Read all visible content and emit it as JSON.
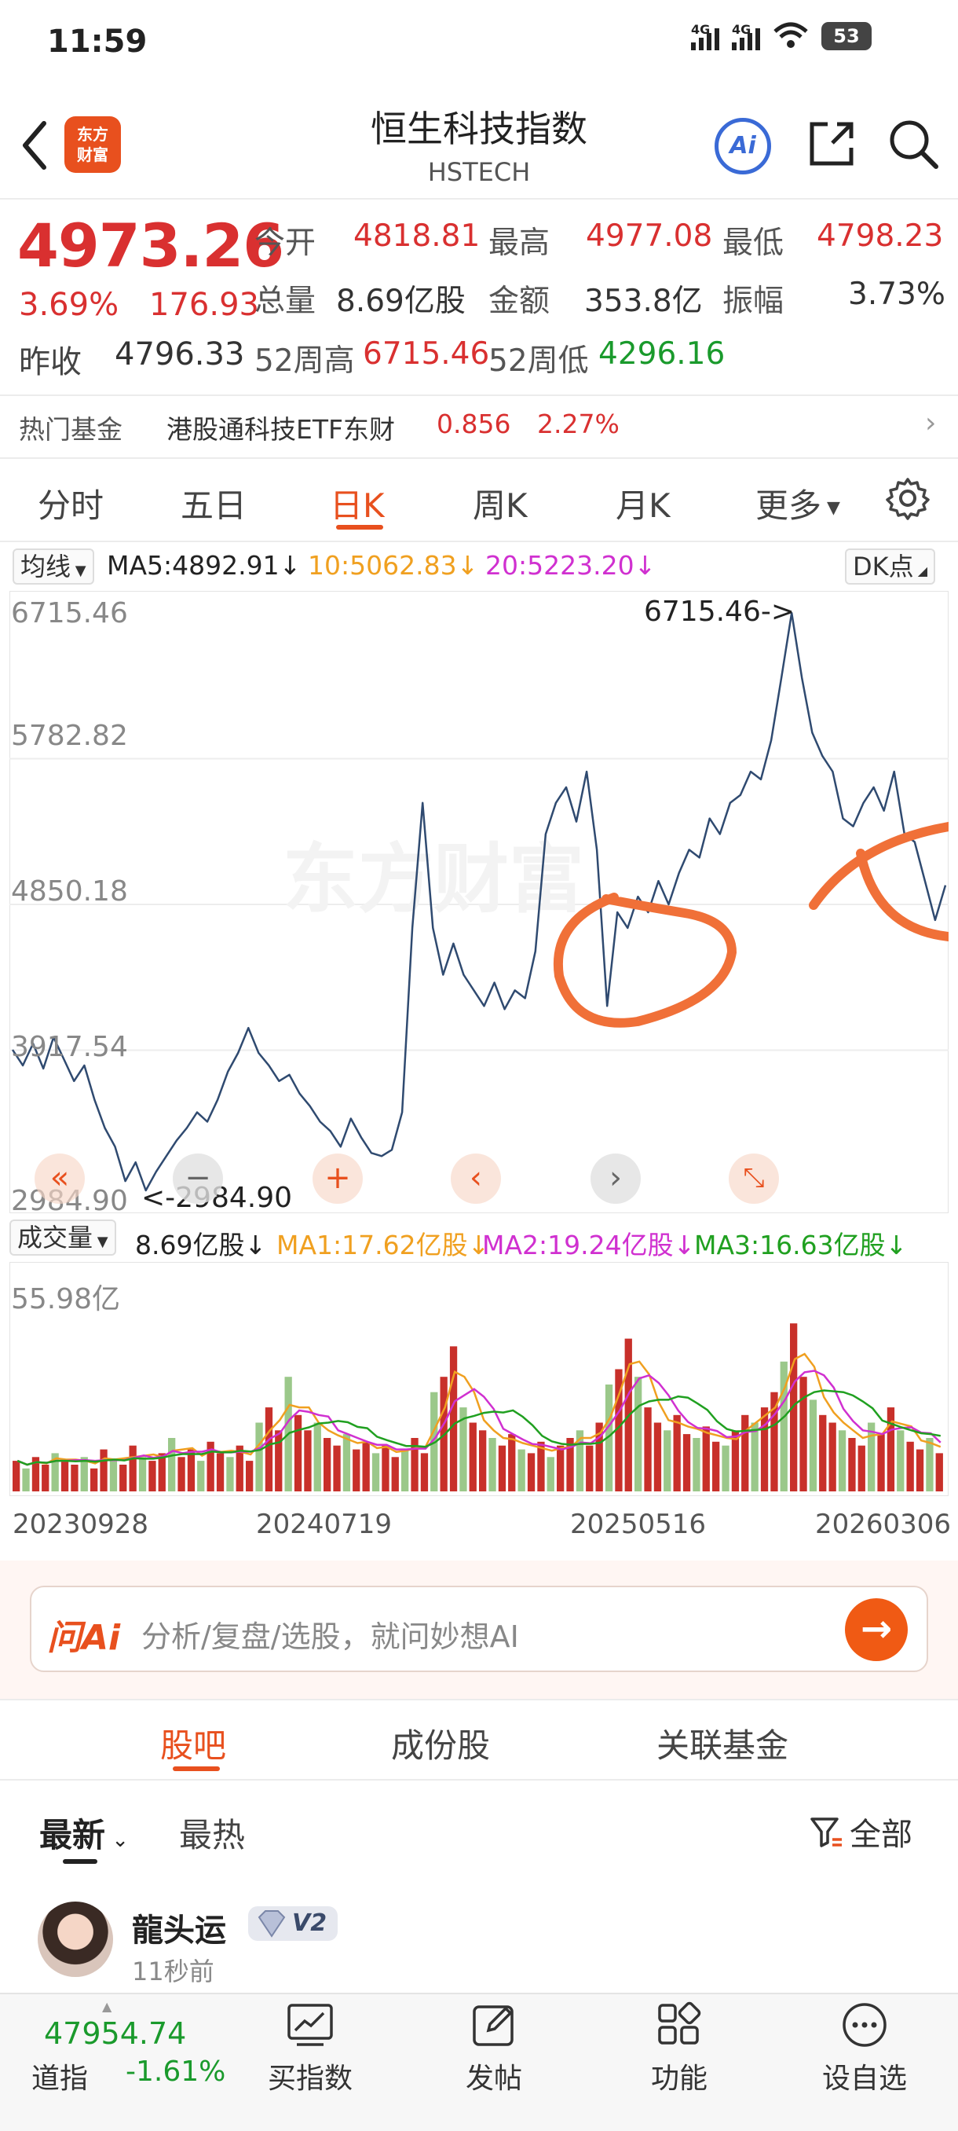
{
  "status_bar": {
    "time": "11:59",
    "signal1": "4G",
    "signal2": "4G",
    "battery": "53"
  },
  "header": {
    "logo_text_line1": "东方",
    "logo_text_line2": "财富",
    "title": "恒生科技指数",
    "subtitle": "HSTECH",
    "ai_label": "Ai"
  },
  "quote": {
    "price": "4973.26",
    "change_pct": "3.69%",
    "change": "176.93",
    "open_label": "今开",
    "open": "4818.81",
    "high_label": "最高",
    "high": "4977.08",
    "low_label": "最低",
    "low": "4798.23",
    "volume_label": "总量",
    "volume": "8.69亿股",
    "amount_label": "金额",
    "amount": "353.8亿",
    "amplitude_label": "振幅",
    "amplitude": "3.73%",
    "prev_close_label": "昨收",
    "prev_close": "4796.33",
    "w52_high_label": "52周高",
    "w52_high": "6715.46",
    "w52_low_label": "52周低",
    "w52_low": "4296.16"
  },
  "fund": {
    "label": "热门基金",
    "name": "港股通科技ETF东财",
    "price": "0.856",
    "change_pct": "2.27%"
  },
  "period_tabs": [
    "分时",
    "五日",
    "日K",
    "周K",
    "月K",
    "更多"
  ],
  "chart_controls": {
    "indicator_select": "均线",
    "ma5": "MA5:4892.91↓",
    "ma10": "10:5062.83↓",
    "ma20": "20:5223.20↓",
    "dk_button": "DK点",
    "volume_select": "成交量",
    "vol_value": "8.69亿股↓",
    "vma1": "MA1:17.62亿股↓",
    "vma2": "MA2:19.24亿股↓",
    "vma3": "MA3:16.63亿股↓"
  },
  "colors": {
    "accent": "#e8501e",
    "up": "#d93030",
    "down": "#1a9a2c",
    "line": "#2f4a70",
    "annotation": "#f07038"
  },
  "chart_data": [
    {
      "type": "line",
      "y_ticks": [
        "6715.46",
        "5782.82",
        "4850.18",
        "3917.54",
        "2984.90"
      ],
      "ylim": [
        2984.9,
        6715.46
      ],
      "max_label": "6715.46->",
      "min_label": "<-2984.90",
      "x_ticks": [
        "20230928",
        "20240719",
        "20250516",
        "20260306"
      ],
      "series": [
        {
          "values": [
            3920,
            3820,
            3960,
            3800,
            4000,
            3860,
            3720,
            3820,
            3600,
            3420,
            3300,
            3080,
            3200,
            3020,
            3140,
            3240,
            3340,
            3420,
            3520,
            3460,
            3600,
            3780,
            3900,
            4060,
            3900,
            3820,
            3720,
            3760,
            3640,
            3560,
            3460,
            3400,
            3300,
            3480,
            3360,
            3260,
            3240,
            3280,
            3520,
            4700,
            5500,
            4700,
            4400,
            4600,
            4400,
            4300,
            4200,
            4350,
            4180,
            4300,
            4250,
            4550,
            5300,
            5500,
            5600,
            5380,
            5700,
            5200,
            4200,
            4800,
            4700,
            4900,
            4800,
            5000,
            4850,
            5050,
            5200,
            5150,
            5400,
            5300,
            5500,
            5550,
            5700,
            5650,
            5900,
            6300,
            6715,
            6300,
            5950,
            5800,
            5700,
            5400,
            5350,
            5500,
            5600,
            5450,
            5700,
            5300,
            5250,
            5000,
            4750,
            4973
          ]
        }
      ]
    },
    {
      "type": "bar",
      "title": "",
      "y_ticks": [
        "55.98亿"
      ],
      "ylim": [
        0,
        55.98
      ],
      "series": [
        {
          "name": "MA1",
          "color": "#f0a020"
        },
        {
          "name": "MA2",
          "color": "#d030d0"
        },
        {
          "name": "MA3",
          "color": "#20a020"
        }
      ],
      "values": [
        8,
        6,
        9,
        7,
        10,
        8,
        7,
        9,
        6,
        11,
        8,
        7,
        12,
        9,
        8,
        10,
        14,
        9,
        11,
        8,
        13,
        10,
        9,
        12,
        8,
        18,
        22,
        16,
        30,
        20,
        16,
        18,
        14,
        12,
        15,
        11,
        13,
        10,
        12,
        9,
        11,
        14,
        10,
        26,
        30,
        38,
        22,
        18,
        16,
        14,
        12,
        15,
        11,
        10,
        13,
        9,
        12,
        14,
        16,
        12,
        18,
        28,
        32,
        40,
        30,
        22,
        18,
        16,
        20,
        15,
        14,
        17,
        13,
        12,
        16,
        20,
        18,
        22,
        26,
        34,
        44,
        30,
        24,
        20,
        18,
        16,
        14,
        12,
        18,
        15,
        22,
        16,
        13,
        11,
        14,
        10
      ]
    }
  ],
  "ai_search": {
    "logo": "问Ai",
    "placeholder": "分析/复盘/选股，就问妙想AI"
  },
  "sub_tabs": [
    "股吧",
    "成份股",
    "关联基金"
  ],
  "sort": {
    "newest": "最新",
    "hottest": "最热",
    "filter": "全部"
  },
  "post": {
    "user": "龍头运",
    "badge": "V2",
    "time": "11秒前"
  },
  "bottom_nav": {
    "dj_value": "47954.74",
    "dj_name": "道指",
    "dj_pct": "-1.61%",
    "items": [
      "买指数",
      "发帖",
      "功能",
      "设自选"
    ]
  }
}
